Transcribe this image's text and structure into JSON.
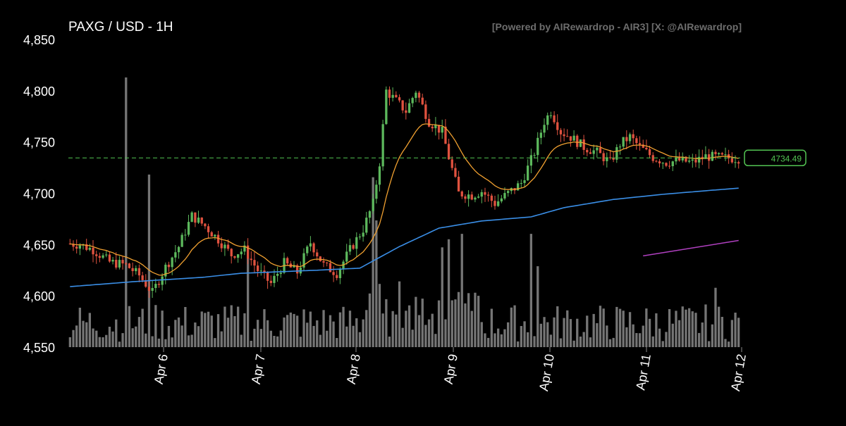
{
  "header": {
    "title": "PAXG / USD - 1H",
    "watermark": "[Powered by AIRewardrop - AIR3] [X: @AIRewardrop]"
  },
  "colors": {
    "background": "#000000",
    "up": "#5cb85c",
    "down": "#e0523f",
    "volume": "#8a8a8a",
    "ma_short": "#f0a030",
    "ma_long": "#3a8ee6",
    "ma_extra": "#b040c0",
    "last_price": "#52c452",
    "axis_text": "#ffffff"
  },
  "chart_data": {
    "type": "candlestick",
    "title": "PAXG / USD - 1H",
    "ylim": [
      4550,
      4850
    ],
    "y_ticks": [
      "4,850",
      "4,800",
      "4,750",
      "4,700",
      "4,650",
      "4,600",
      "4,550"
    ],
    "x_ticks": [
      "Apr 6",
      "Apr 7",
      "Apr 8",
      "Apr 9",
      "Apr 10",
      "Apr 11",
      "Apr 12"
    ],
    "last_price": "4734.49",
    "price_path": [
      {
        "t": 0,
        "p": 4651
      },
      {
        "t": 4,
        "p": 4650
      },
      {
        "t": 8,
        "p": 4645
      },
      {
        "t": 13,
        "p": 4633
      },
      {
        "t": 18,
        "p": 4630
      },
      {
        "t": 22,
        "p": 4620
      },
      {
        "t": 26,
        "p": 4603
      },
      {
        "t": 30,
        "p": 4628
      },
      {
        "t": 34,
        "p": 4648
      },
      {
        "t": 38,
        "p": 4678
      },
      {
        "t": 42,
        "p": 4668
      },
      {
        "t": 46,
        "p": 4655
      },
      {
        "t": 50,
        "p": 4640
      },
      {
        "t": 54,
        "p": 4645
      },
      {
        "t": 58,
        "p": 4625
      },
      {
        "t": 62,
        "p": 4612
      },
      {
        "t": 66,
        "p": 4632
      },
      {
        "t": 70,
        "p": 4623
      },
      {
        "t": 74,
        "p": 4652
      },
      {
        "t": 78,
        "p": 4630
      },
      {
        "t": 82,
        "p": 4622
      },
      {
        "t": 86,
        "p": 4645
      },
      {
        "t": 90,
        "p": 4665
      },
      {
        "t": 93,
        "p": 4690
      },
      {
        "t": 95,
        "p": 4730
      },
      {
        "t": 97,
        "p": 4800
      },
      {
        "t": 100,
        "p": 4790
      },
      {
        "t": 103,
        "p": 4780
      },
      {
        "t": 106,
        "p": 4800
      },
      {
        "t": 110,
        "p": 4770
      },
      {
        "t": 114,
        "p": 4760
      },
      {
        "t": 116,
        "p": 4735
      },
      {
        "t": 119,
        "p": 4700
      },
      {
        "t": 123,
        "p": 4698
      },
      {
        "t": 126,
        "p": 4702
      },
      {
        "t": 130,
        "p": 4690
      },
      {
        "t": 134,
        "p": 4700
      },
      {
        "t": 138,
        "p": 4710
      },
      {
        "t": 142,
        "p": 4740
      },
      {
        "t": 145,
        "p": 4770
      },
      {
        "t": 147,
        "p": 4780
      },
      {
        "t": 150,
        "p": 4760
      },
      {
        "t": 153,
        "p": 4755
      },
      {
        "t": 157,
        "p": 4745
      },
      {
        "t": 161,
        "p": 4740
      },
      {
        "t": 165,
        "p": 4730
      },
      {
        "t": 168,
        "p": 4748
      },
      {
        "t": 171,
        "p": 4755
      },
      {
        "t": 174,
        "p": 4745
      },
      {
        "t": 178,
        "p": 4735
      },
      {
        "t": 182,
        "p": 4730
      },
      {
        "t": 186,
        "p": 4732
      },
      {
        "t": 190,
        "p": 4730
      },
      {
        "t": 194,
        "p": 4736
      },
      {
        "t": 198,
        "p": 4735
      },
      {
        "t": 203,
        "p": 4734
      }
    ],
    "ma_long": [
      {
        "t": 0,
        "p": 4609
      },
      {
        "t": 20,
        "p": 4614
      },
      {
        "t": 40,
        "p": 4618
      },
      {
        "t": 52,
        "p": 4622
      },
      {
        "t": 75,
        "p": 4625
      },
      {
        "t": 88,
        "p": 4627
      },
      {
        "t": 100,
        "p": 4648
      },
      {
        "t": 112,
        "p": 4666
      },
      {
        "t": 125,
        "p": 4673
      },
      {
        "t": 140,
        "p": 4677
      },
      {
        "t": 150,
        "p": 4686
      },
      {
        "t": 165,
        "p": 4694
      },
      {
        "t": 180,
        "p": 4699
      },
      {
        "t": 195,
        "p": 4703
      },
      {
        "t": 203,
        "p": 4705
      }
    ],
    "ma_extra": [
      {
        "t": 174,
        "p": 4639
      },
      {
        "t": 203,
        "p": 4654
      }
    ],
    "volume_spikes": [
      {
        "t": 17,
        "v": 100
      },
      {
        "t": 24,
        "v": 64
      },
      {
        "t": 54,
        "v": 33
      },
      {
        "t": 92,
        "v": 63
      },
      {
        "t": 93,
        "v": 47
      },
      {
        "t": 113,
        "v": 37
      },
      {
        "t": 115,
        "v": 40
      },
      {
        "t": 119,
        "v": 42
      },
      {
        "t": 140,
        "v": 42
      },
      {
        "t": 142,
        "v": 30
      },
      {
        "t": 196,
        "v": 22
      }
    ]
  }
}
